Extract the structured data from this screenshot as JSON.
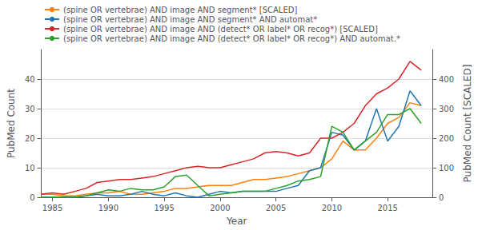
{
  "chart_data": {
    "type": "line",
    "xlabel": "Year",
    "ylabel": "PubMed Count",
    "y2label": "PubMed Count [SCALED]",
    "x": [
      1984,
      1985,
      1986,
      1987,
      1988,
      1989,
      1990,
      1991,
      1992,
      1993,
      1994,
      1995,
      1996,
      1997,
      1998,
      1999,
      2000,
      2001,
      2002,
      2003,
      2004,
      2005,
      2006,
      2007,
      2008,
      2009,
      2010,
      2011,
      2012,
      2013,
      2014,
      2015,
      2016,
      2017,
      2018
    ],
    "series": [
      {
        "name": "(spine OR vertebrae) AND image AND segment* [SCALED]",
        "color": "#ff7f0e",
        "values": [
          1,
          1,
          0.5,
          0.5,
          1,
          1.5,
          1.5,
          2,
          1,
          1,
          1.5,
          2,
          3,
          3,
          3.5,
          4,
          4,
          4,
          5,
          6,
          6,
          6.5,
          7,
          8,
          9,
          10,
          13,
          19,
          16,
          16,
          20,
          25,
          27,
          32,
          31
        ]
      },
      {
        "name": "(spine OR vertebrae) AND image AND segment* AND automat*",
        "color": "#1f77b4",
        "values": [
          0,
          0,
          0,
          0,
          0.5,
          1,
          0.5,
          0.5,
          1,
          2,
          1,
          0.5,
          1.5,
          0.5,
          0,
          1,
          2,
          1.5,
          2,
          2,
          2,
          2,
          3,
          4,
          9,
          10,
          22,
          21,
          16,
          19,
          30,
          19,
          24,
          36,
          31
        ]
      },
      {
        "name": "(spine OR vertebrae) AND image AND (detect* OR label* OR recog*) [SCALED]",
        "color": "#d62728",
        "values": [
          1,
          1.5,
          1,
          2,
          3,
          5,
          5.5,
          6,
          6,
          6.5,
          7,
          8,
          9,
          10,
          10.5,
          10,
          10,
          11,
          12,
          13,
          15,
          15.5,
          15,
          14,
          15,
          20,
          20,
          22,
          25,
          31,
          35,
          37,
          40,
          46,
          43
        ]
      },
      {
        "name": "(spine OR vertebrae) AND image AND (detect* OR label* OR recog*) AND automat.*",
        "color": "#2ca02c",
        "values": [
          0,
          0,
          0,
          0,
          0.5,
          1.5,
          2.5,
          2,
          3,
          2.5,
          2.5,
          3.5,
          7,
          7.5,
          4,
          0.5,
          1,
          1.5,
          2,
          2,
          2,
          3,
          4,
          5.5,
          6,
          7,
          24,
          22,
          16,
          19,
          22,
          28,
          28,
          30,
          25
        ]
      }
    ],
    "xlim": [
      1984,
      2019
    ],
    "xticks": [
      1985,
      1990,
      1995,
      2000,
      2005,
      2010,
      2015
    ],
    "ylim": [
      0,
      50
    ],
    "yticks": [
      0,
      10,
      20,
      30,
      40
    ],
    "y2lim": [
      0,
      500
    ],
    "y2ticks": [
      0,
      100,
      200,
      300,
      400
    ],
    "grid": true,
    "legend": "upper left"
  }
}
